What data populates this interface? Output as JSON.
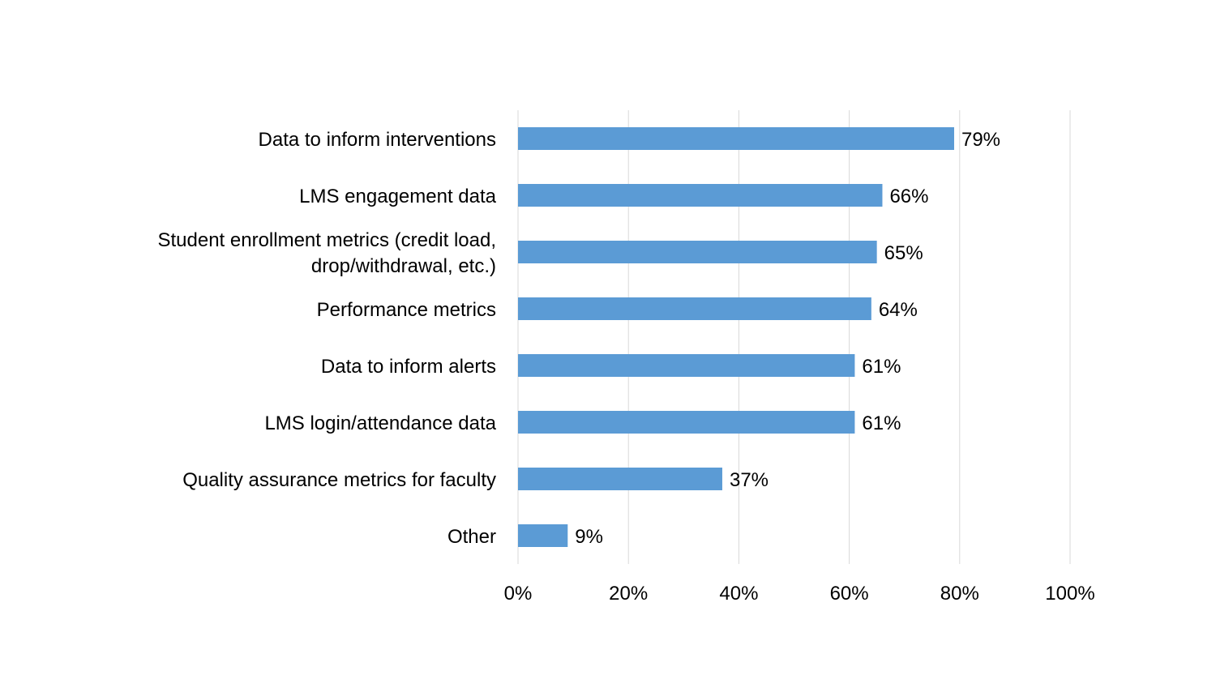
{
  "chart_data": {
    "type": "bar",
    "orientation": "horizontal",
    "title": "",
    "xlabel": "",
    "ylabel": "",
    "categories": [
      "Data to inform interventions",
      "LMS engagement data",
      "Student enrollment metrics (credit load, drop/withdrawal, etc.)",
      "Performance metrics",
      "Data to inform alerts",
      "LMS login/attendance data",
      "Quality assurance metrics for faculty",
      "Other"
    ],
    "category_lines": [
      [
        "Data to inform interventions"
      ],
      [
        "LMS engagement data"
      ],
      [
        "Student enrollment metrics (credit load,",
        "drop/withdrawal, etc.)"
      ],
      [
        "Performance metrics"
      ],
      [
        "Data to inform alerts"
      ],
      [
        "LMS login/attendance data"
      ],
      [
        "Quality assurance metrics for faculty"
      ],
      [
        "Other"
      ]
    ],
    "values": [
      79,
      66,
      65,
      64,
      61,
      61,
      37,
      9
    ],
    "data_labels": [
      "79%",
      "66%",
      "65%",
      "64%",
      "61%",
      "61%",
      "37%",
      "9%"
    ],
    "xlim": [
      0,
      100
    ],
    "xticks": [
      0,
      20,
      40,
      60,
      80,
      100
    ],
    "xtick_labels": [
      "0%",
      "20%",
      "40%",
      "60%",
      "80%",
      "100%"
    ],
    "grid": true,
    "legend": "none",
    "bar_color": "#5b9bd5"
  }
}
